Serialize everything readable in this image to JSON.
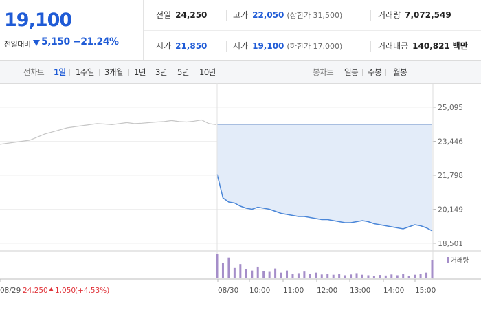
{
  "quote": {
    "price": "19,100",
    "change_label": "전일대비",
    "change_value": "5,150",
    "change_pct": "−21.24%"
  },
  "stats": {
    "prev_label": "전일",
    "prev_value": "24,250",
    "high_label": "고가",
    "high_value": "22,050",
    "high_sub": "(상한가 31,500)",
    "volume_label": "거래량",
    "volume_value": "7,072,549",
    "open_label": "시가",
    "open_value": "21,850",
    "low_label": "저가",
    "low_value": "19,100",
    "low_sub": "(하한가 17,000)",
    "amount_label": "거래대금",
    "amount_value": "140,821",
    "amount_unit": "백만"
  },
  "tabs": {
    "line_chart_label": "선차트",
    "line_items": [
      "1일",
      "1주일",
      "3개월",
      "1년",
      "3년",
      "5년",
      "10년"
    ],
    "line_active": "1일",
    "candle_chart_label": "봉차트",
    "candle_items": [
      "일봉",
      "주봉",
      "월봉"
    ]
  },
  "colors": {
    "blue": "#1f5bd6",
    "red": "#e0343a",
    "line": "#4a86d8",
    "fill": "#e3ecf9",
    "prev": "#c6c6c6",
    "volume": "#a58ec9"
  },
  "chart_data": {
    "type": "line",
    "y_ticks": [
      "25,095",
      "23,446",
      "21,798",
      "20,149",
      "18,501"
    ],
    "ylim": [
      18501,
      25095
    ],
    "x_ticks": [
      "08/29",
      "08/30",
      "10:00",
      "11:00",
      "12:00",
      "13:00",
      "14:00",
      "15:00"
    ],
    "reference_price": 24250,
    "prev_day": {
      "label": "08/29",
      "close_info": "24,250",
      "change_info": "1,050",
      "change_pct_info": "(+4.53%)",
      "points": [
        23300,
        23350,
        23400,
        23450,
        23500,
        23650,
        23800,
        23900,
        24000,
        24100,
        24150,
        24200,
        24250,
        24300,
        24280,
        24250,
        24300,
        24350,
        24300,
        24320,
        24350,
        24380,
        24400,
        24450,
        24400,
        24380,
        24420,
        24480,
        24300,
        24250
      ]
    },
    "today": {
      "label": "08/30",
      "points": [
        21850,
        20700,
        20500,
        20450,
        20300,
        20200,
        20150,
        20250,
        20200,
        20150,
        20050,
        19950,
        19900,
        19850,
        19800,
        19800,
        19750,
        19700,
        19650,
        19650,
        19600,
        19550,
        19500,
        19500,
        19550,
        19600,
        19550,
        19450,
        19400,
        19350,
        19300,
        19250,
        19200,
        19300,
        19400,
        19350,
        19250,
        19100
      ]
    },
    "volume_label": "거래량",
    "volume_today": [
      95,
      60,
      80,
      40,
      55,
      35,
      30,
      45,
      28,
      25,
      38,
      22,
      30,
      18,
      20,
      26,
      16,
      22,
      15,
      18,
      14,
      17,
      12,
      15,
      20,
      14,
      12,
      10,
      13,
      11,
      15,
      12,
      18,
      10,
      14,
      16,
      22,
      70
    ]
  }
}
